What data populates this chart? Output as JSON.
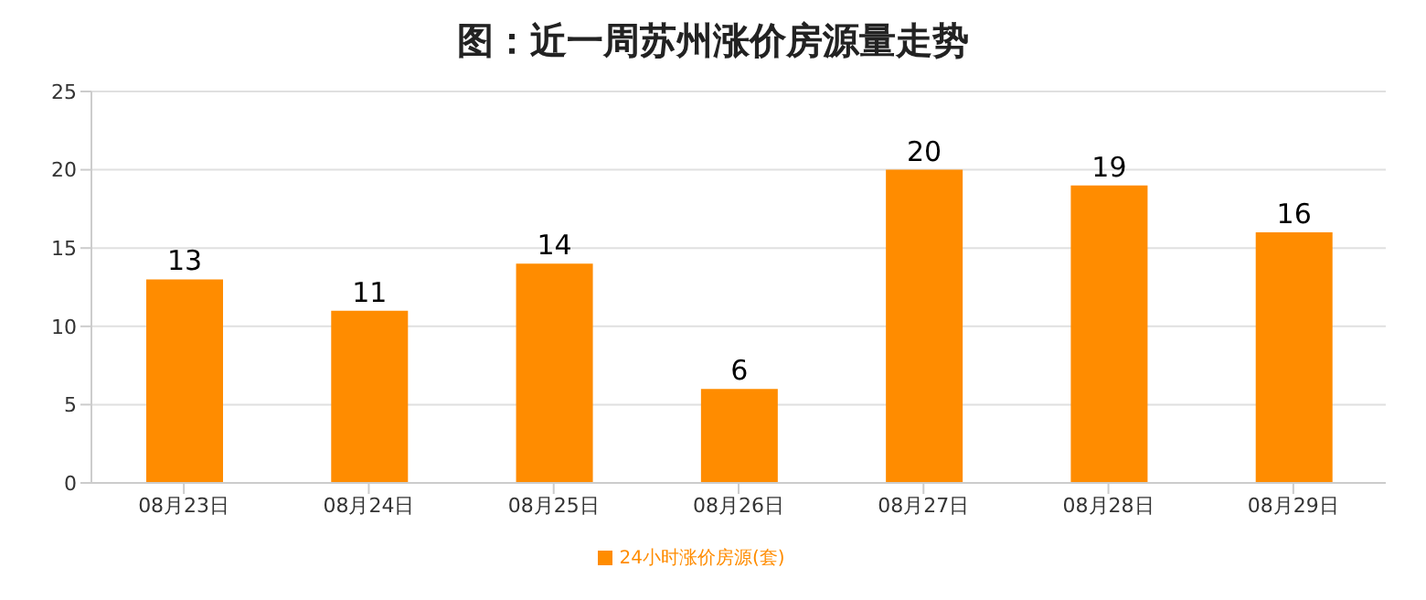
{
  "chart_data": {
    "type": "bar",
    "title": "图：近一周苏州涨价房源量走势",
    "categories": [
      "08月23日",
      "08月24日",
      "08月25日",
      "08月26日",
      "08月27日",
      "08月28日",
      "08月29日"
    ],
    "series": [
      {
        "name": "24小时涨价房源(套)",
        "color": "#ff8c00",
        "values": [
          13,
          11,
          14,
          6,
          20,
          19,
          16
        ]
      }
    ],
    "ylim": [
      0,
      25
    ],
    "yticks": [
      0,
      5,
      10,
      15,
      20,
      25
    ],
    "grid": "y",
    "legend": "bottom",
    "data_labels": true
  }
}
